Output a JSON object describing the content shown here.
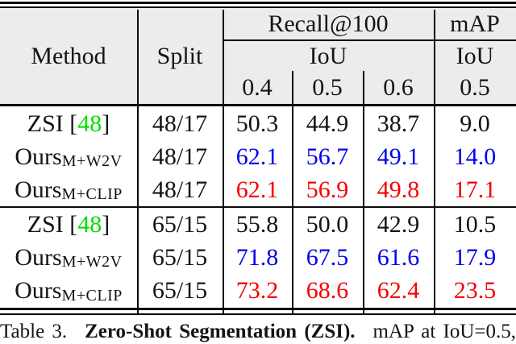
{
  "colors": {
    "blue": "#0000EE",
    "red": "#F40000",
    "green": "#00DF00",
    "header_bg": "#ECECEC",
    "line": "#0A0A0A",
    "text": "#141414"
  },
  "table": {
    "header": {
      "method": "Method",
      "split": "Split",
      "recall_group": "Recall@100",
      "map_group": "mAP",
      "recall_sub": "IoU",
      "map_sub": "IoU",
      "recall_cols": [
        "0.4",
        "0.5",
        "0.6"
      ],
      "map_col": "0.5"
    },
    "rows": [
      {
        "method_prefix": "ZSI [",
        "cite": "48",
        "method_suffix": "]",
        "split": "48/17",
        "values": [
          "50.3",
          "44.9",
          "38.7",
          "9.0"
        ],
        "value_color": "black"
      },
      {
        "method_main": "Ours",
        "method_sub": "M+W2V",
        "split": "48/17",
        "values": [
          "62.1",
          "56.7",
          "49.1",
          "14.0"
        ],
        "value_color": "blue"
      },
      {
        "method_main": "Ours",
        "method_sub": "M+CLIP",
        "split": "48/17",
        "values": [
          "62.1",
          "56.9",
          "49.8",
          "17.1"
        ],
        "value_color": "red"
      },
      {
        "method_prefix": "ZSI [",
        "cite": "48",
        "method_suffix": "]",
        "split": "65/15",
        "values": [
          "55.8",
          "50.0",
          "42.9",
          "10.5"
        ],
        "value_color": "black"
      },
      {
        "method_main": "Ours",
        "method_sub": "M+W2V",
        "split": "65/15",
        "values": [
          "71.8",
          "67.5",
          "61.6",
          "17.9"
        ],
        "value_color": "blue"
      },
      {
        "method_main": "Ours",
        "method_sub": "M+CLIP",
        "split": "65/15",
        "values": [
          "73.2",
          "68.6",
          "62.4",
          "23.5"
        ],
        "value_color": "red"
      }
    ]
  },
  "caption": {
    "label": "Table 3.",
    "bold": "Zero-Shot Segmentation (ZSI).",
    "rest": "mAP at IoU=0.5,"
  }
}
